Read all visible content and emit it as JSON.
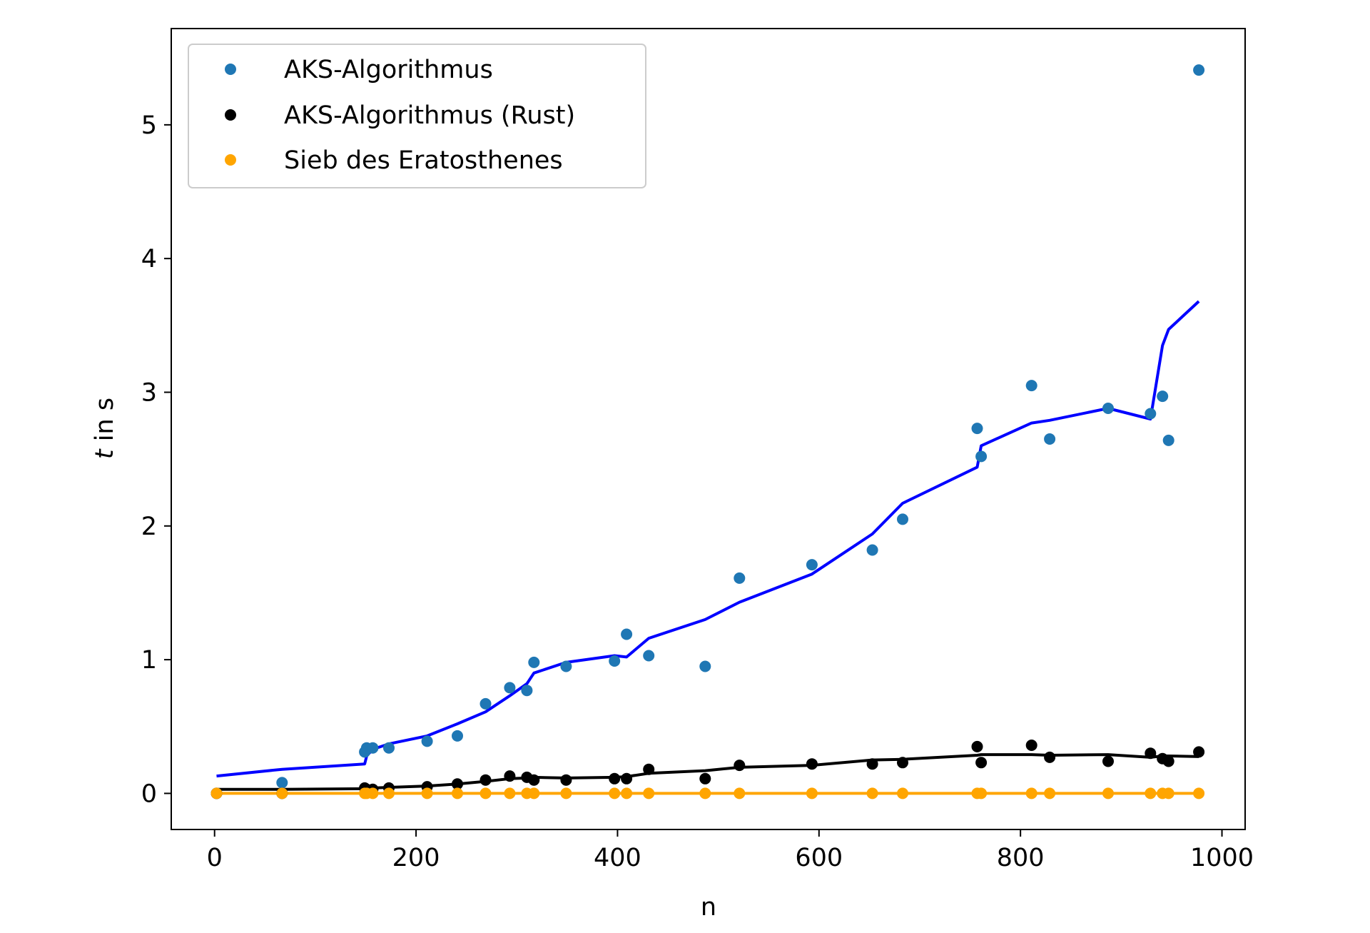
{
  "chart_data": {
    "type": "scatter",
    "xlabel": "n",
    "ylabel_italic": "t",
    "ylabel_rest": " in s",
    "xlim": [
      -43,
      1023
    ],
    "ylim": [
      -0.27,
      5.72
    ],
    "xticks": [
      0,
      200,
      400,
      600,
      800,
      1000
    ],
    "yticks": [
      0,
      1,
      2,
      3,
      4,
      5
    ],
    "grid": false,
    "legend_position": "upper-left",
    "series": [
      {
        "name": "AKS-Algorithmus",
        "kind": "points",
        "color": "#1f77b4",
        "x": [
          2,
          67,
          149,
          151,
          157,
          173,
          211,
          241,
          269,
          293,
          310,
          317,
          349,
          397,
          409,
          431,
          487,
          521,
          593,
          653,
          683,
          757,
          761,
          811,
          829,
          887,
          929,
          941,
          947,
          977
        ],
        "y": [
          0.0,
          0.08,
          0.31,
          0.34,
          0.34,
          0.34,
          0.39,
          0.43,
          0.67,
          0.79,
          0.77,
          0.98,
          0.95,
          0.99,
          1.19,
          1.03,
          0.95,
          1.61,
          1.71,
          1.82,
          2.05,
          2.73,
          2.52,
          3.05,
          2.65,
          2.88,
          2.84,
          2.97,
          2.64,
          5.41
        ]
      },
      {
        "name": "AKS-Algorithmus (Rust)",
        "kind": "points",
        "color": "#000000",
        "x": [
          2,
          67,
          149,
          151,
          157,
          173,
          211,
          241,
          269,
          293,
          310,
          317,
          349,
          397,
          409,
          431,
          487,
          521,
          593,
          653,
          683,
          757,
          761,
          811,
          829,
          887,
          929,
          941,
          947,
          977
        ],
        "y": [
          0.0,
          0.0,
          0.04,
          0.03,
          0.03,
          0.04,
          0.05,
          0.07,
          0.1,
          0.13,
          0.12,
          0.1,
          0.1,
          0.11,
          0.11,
          0.18,
          0.11,
          0.21,
          0.22,
          0.22,
          0.23,
          0.35,
          0.23,
          0.36,
          0.27,
          0.24,
          0.3,
          0.26,
          0.24,
          0.31
        ]
      },
      {
        "name": "Sieb des Eratosthenes",
        "kind": "points",
        "color": "#ffa500",
        "x": [
          2,
          67,
          149,
          151,
          157,
          173,
          211,
          241,
          269,
          293,
          310,
          317,
          349,
          397,
          409,
          431,
          487,
          521,
          593,
          653,
          683,
          757,
          761,
          811,
          829,
          887,
          929,
          941,
          947,
          977
        ],
        "y": [
          0,
          0,
          0,
          0,
          0,
          0,
          0,
          0,
          0,
          0,
          0,
          0,
          0,
          0,
          0,
          0,
          0,
          0,
          0,
          0,
          0,
          0,
          0,
          0,
          0,
          0,
          0,
          0,
          0,
          0
        ]
      },
      {
        "kind": "line",
        "color": "#0000ff",
        "x": [
          2,
          67,
          149,
          151,
          157,
          173,
          211,
          241,
          269,
          293,
          310,
          317,
          349,
          397,
          409,
          431,
          487,
          521,
          593,
          653,
          683,
          757,
          761,
          811,
          829,
          887,
          929,
          941,
          947,
          977
        ],
        "y": [
          0.13,
          0.18,
          0.22,
          0.28,
          0.33,
          0.37,
          0.43,
          0.52,
          0.61,
          0.73,
          0.82,
          0.9,
          0.98,
          1.03,
          1.02,
          1.16,
          1.3,
          1.43,
          1.64,
          1.94,
          2.17,
          2.44,
          2.6,
          2.77,
          2.79,
          2.88,
          2.8,
          3.35,
          3.47,
          3.68
        ]
      },
      {
        "kind": "line",
        "color": "#000000",
        "x": [
          2,
          67,
          149,
          151,
          157,
          173,
          211,
          241,
          269,
          293,
          310,
          317,
          349,
          397,
          409,
          431,
          487,
          521,
          593,
          653,
          683,
          757,
          761,
          811,
          829,
          887,
          929,
          941,
          947,
          977
        ],
        "y": [
          0.03,
          0.03,
          0.035,
          0.037,
          0.04,
          0.045,
          0.055,
          0.07,
          0.09,
          0.11,
          0.115,
          0.12,
          0.115,
          0.12,
          0.125,
          0.15,
          0.17,
          0.195,
          0.21,
          0.25,
          0.255,
          0.285,
          0.29,
          0.29,
          0.285,
          0.29,
          0.27,
          0.28,
          0.28,
          0.275
        ]
      },
      {
        "kind": "line",
        "color": "#ffa500",
        "x": [
          2,
          977
        ],
        "y": [
          0,
          0
        ]
      }
    ]
  }
}
